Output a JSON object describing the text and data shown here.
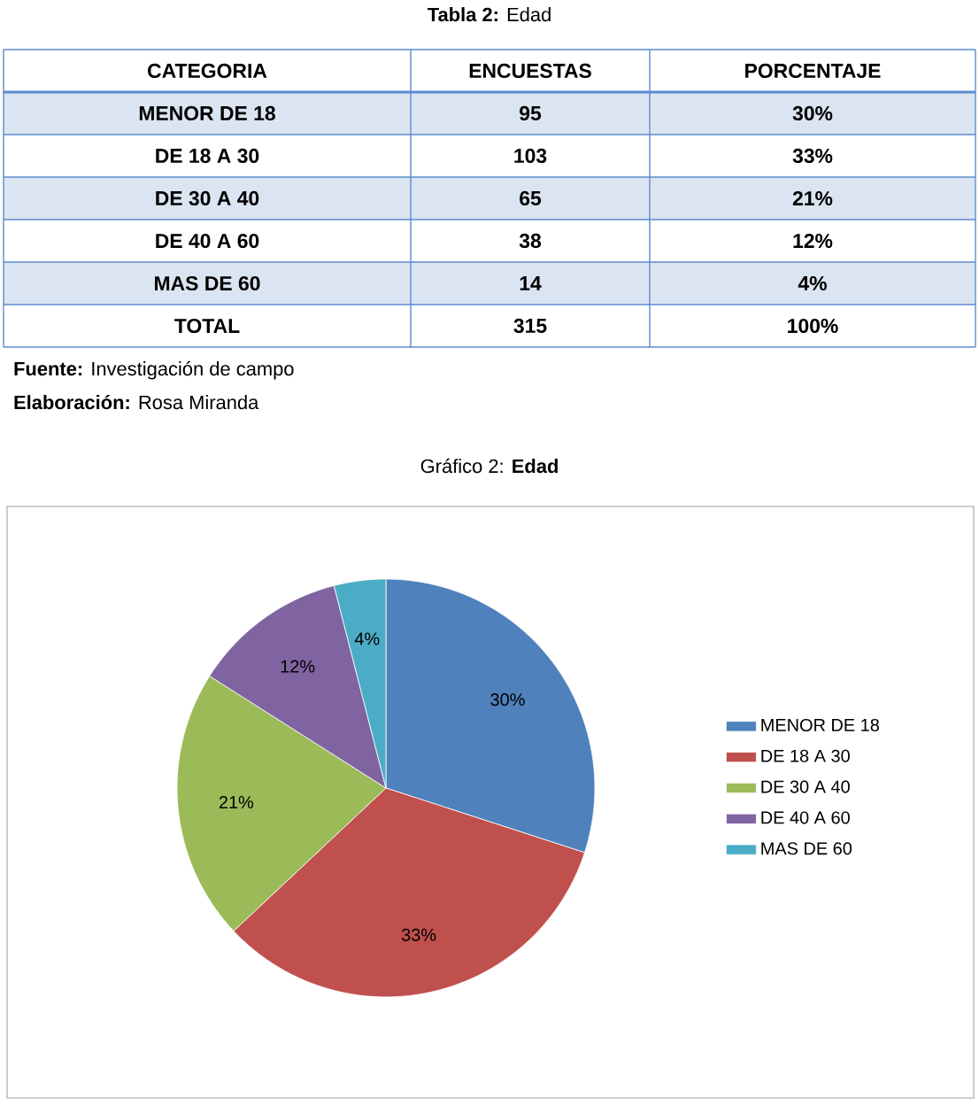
{
  "chart_data": [
    {
      "type": "other",
      "title": "**Tabla 2:** Edad",
      "categories": [
        "CATEGORIA",
        "ENCUESTAS",
        "PORCENTAJE"
      ],
      "y_categories": [
        "MENOR DE 18",
        "DE 18 A 30",
        "DE 30 A 40",
        "DE 40 A 60",
        "MAS DE 60",
        "TOTAL"
      ],
      "cell_labels": [
        [
          "95",
          "30%"
        ],
        [
          "103",
          "33%"
        ],
        [
          "65",
          "21%"
        ],
        [
          "38",
          "12%"
        ],
        [
          "14",
          "4%"
        ],
        [
          "315",
          "100%"
        ]
      ],
      "annotations": [
        "**Fuente:** Investigación de campo",
        "**Elaboración:** Rosa Miranda"
      ]
    },
    {
      "type": "pie",
      "title": "Gráfico 2: **Edad**",
      "categories": [
        "MENOR DE 18",
        "DE 18 A 30",
        "DE 30 A 40",
        "DE 40 A 60",
        "MAS DE 60"
      ],
      "values": [
        30,
        33,
        21,
        12,
        4
      ],
      "value_labels": [
        "30%",
        "33%",
        "21%",
        "12%",
        "4%"
      ],
      "colors": [
        "#4f81bd",
        "#c0504d",
        "#9bbb59",
        "#8064a2",
        "#4bacc6"
      ],
      "legend": "right"
    }
  ]
}
